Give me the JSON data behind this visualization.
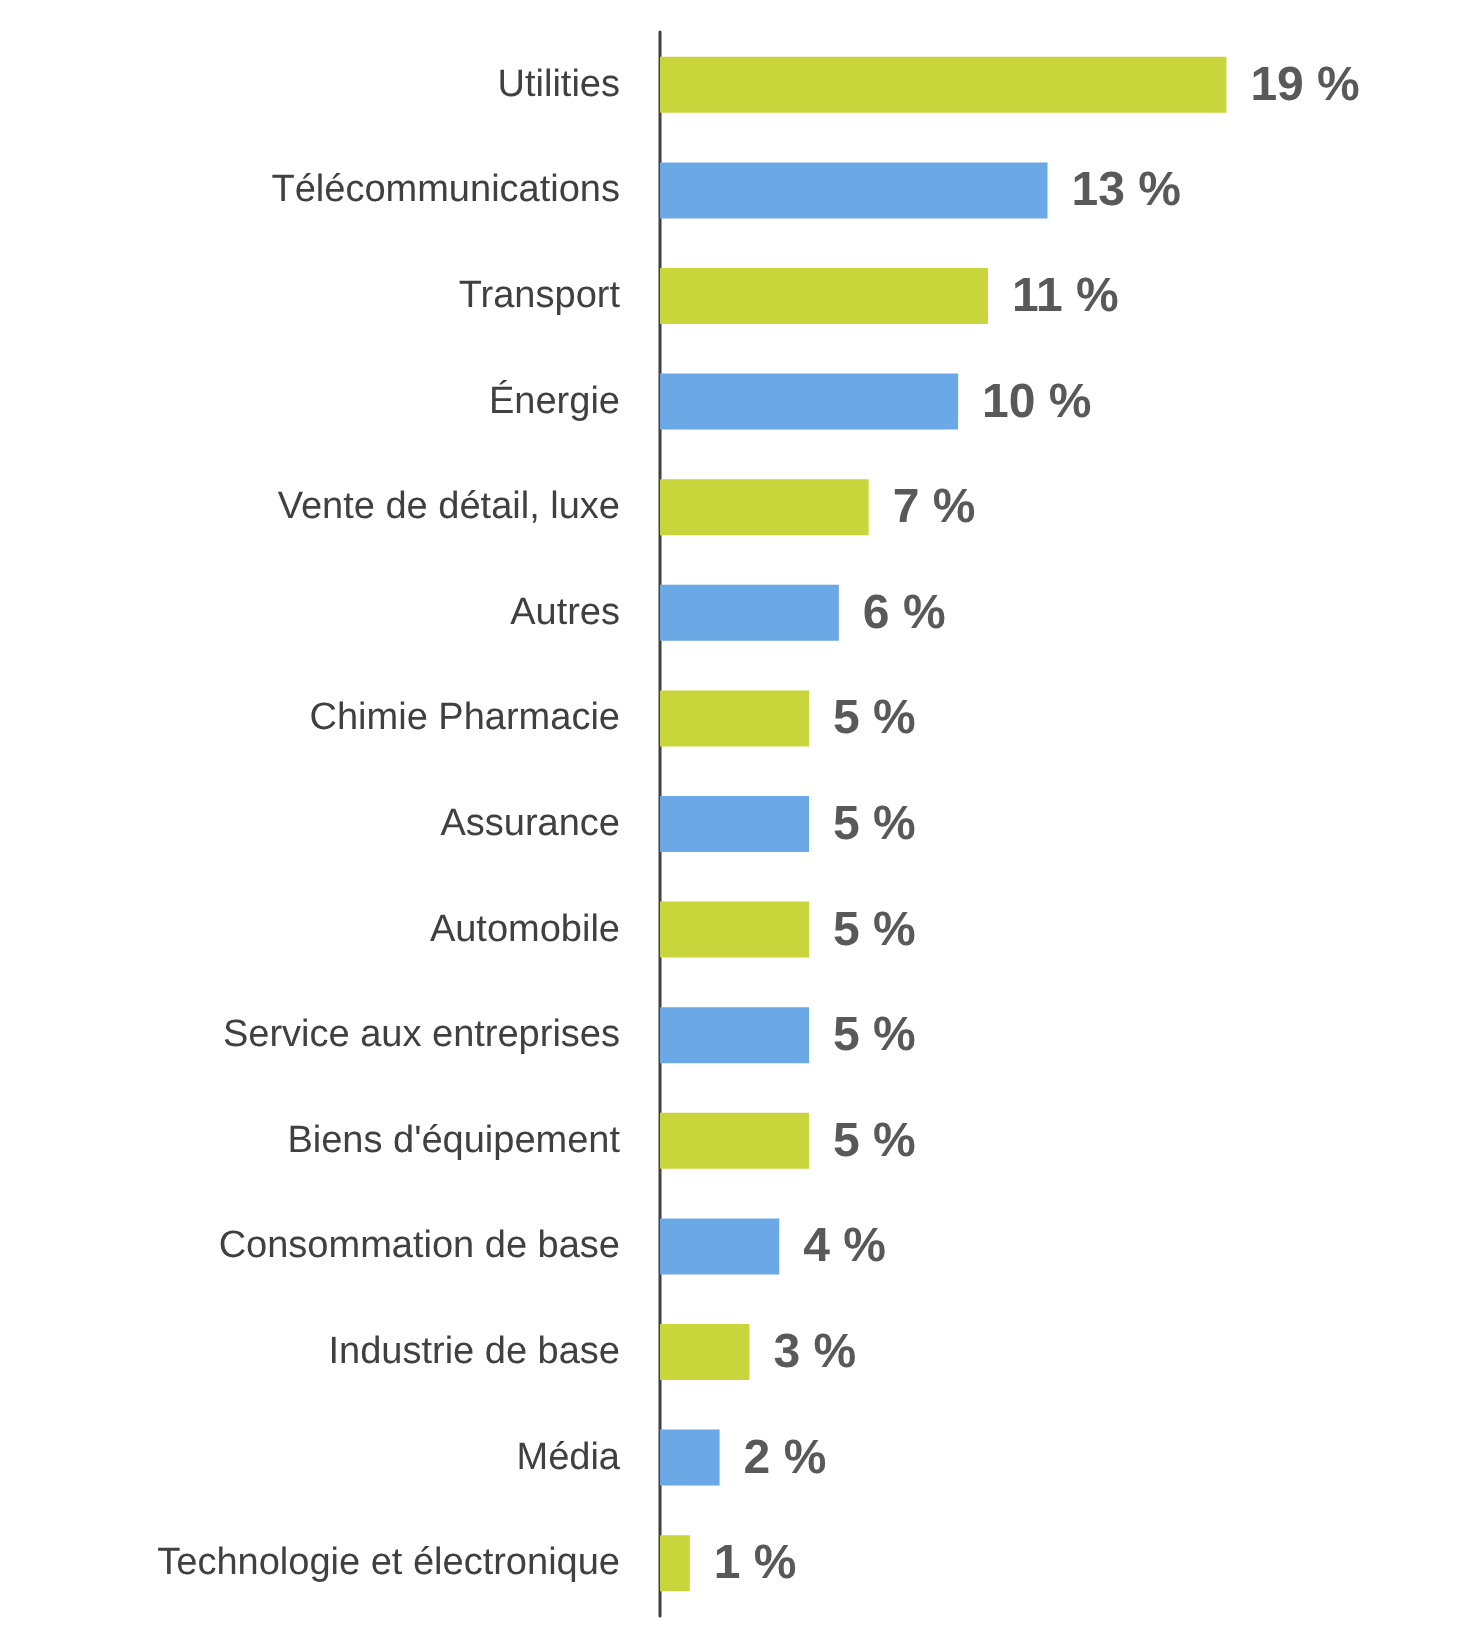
{
  "chart_data": {
    "type": "bar",
    "orientation": "horizontal",
    "categories": [
      "Utilities",
      "Télécommunications",
      "Transport",
      "Énergie",
      "Vente de détail, luxe",
      "Autres",
      "Chimie Pharmacie",
      "Assurance",
      "Automobile",
      "Service aux entreprises",
      "Biens d'équipement",
      "Consommation de base",
      "Industrie de base",
      "Média",
      "Technologie et électronique"
    ],
    "values": [
      19,
      13,
      11,
      10,
      7,
      6,
      5,
      5,
      5,
      5,
      5,
      4,
      3,
      2,
      1
    ],
    "colors": [
      "#c9d63b",
      "#6aa9e5",
      "#c9d63b",
      "#6aa9e5",
      "#c9d63b",
      "#6aa9e5",
      "#c9d63b",
      "#6aa9e5",
      "#c9d63b",
      "#6aa9e5",
      "#c9d63b",
      "#6aa9e5",
      "#c9d63b",
      "#6aa9e5",
      "#c9d63b"
    ],
    "value_labels": [
      "19 %",
      "13 %",
      "11 %",
      "10 %",
      "7 %",
      "6 %",
      "5 %",
      "5 %",
      "5 %",
      "5 %",
      "5 %",
      "4 %",
      "3 %",
      "2 %",
      "1 %"
    ],
    "tick_labels": "y"
  }
}
